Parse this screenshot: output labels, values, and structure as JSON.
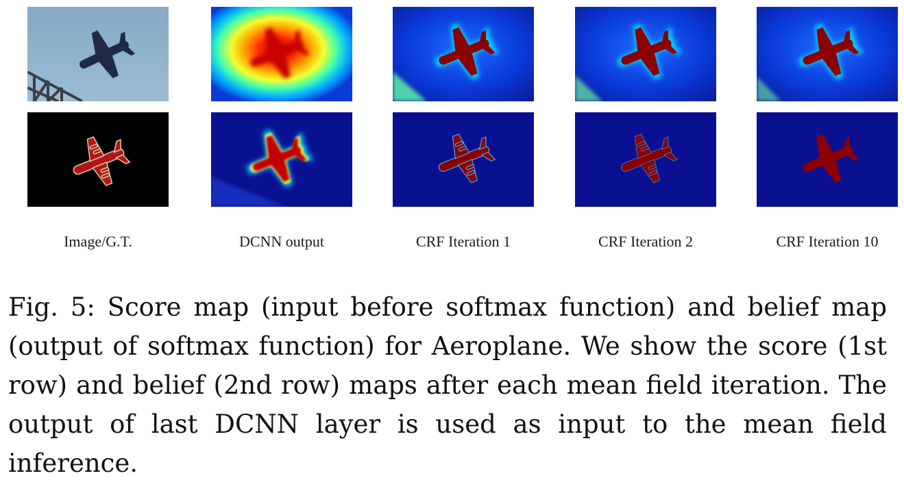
{
  "figure": {
    "column_labels": [
      "Image/G.T.",
      "DCNN output",
      "CRF Iteration 1",
      "CRF Iteration 2",
      "CRF Iteration 10"
    ],
    "rows": [
      "score map",
      "belief map"
    ],
    "colors": {
      "sky": "#8fb0c8",
      "map_background": "#0a1190",
      "map_hot": "#8b0000",
      "mask_background": "#000000",
      "mask_plane": "#b31515"
    },
    "caption": "Fig. 5: Score map (input before softmax function) and belief map (output of softmax function) for Aeroplane. We show the score (1st row) and belief (2nd row) maps after each mean field iteration. The output of last DCNN layer is used as input to the mean field inference."
  }
}
